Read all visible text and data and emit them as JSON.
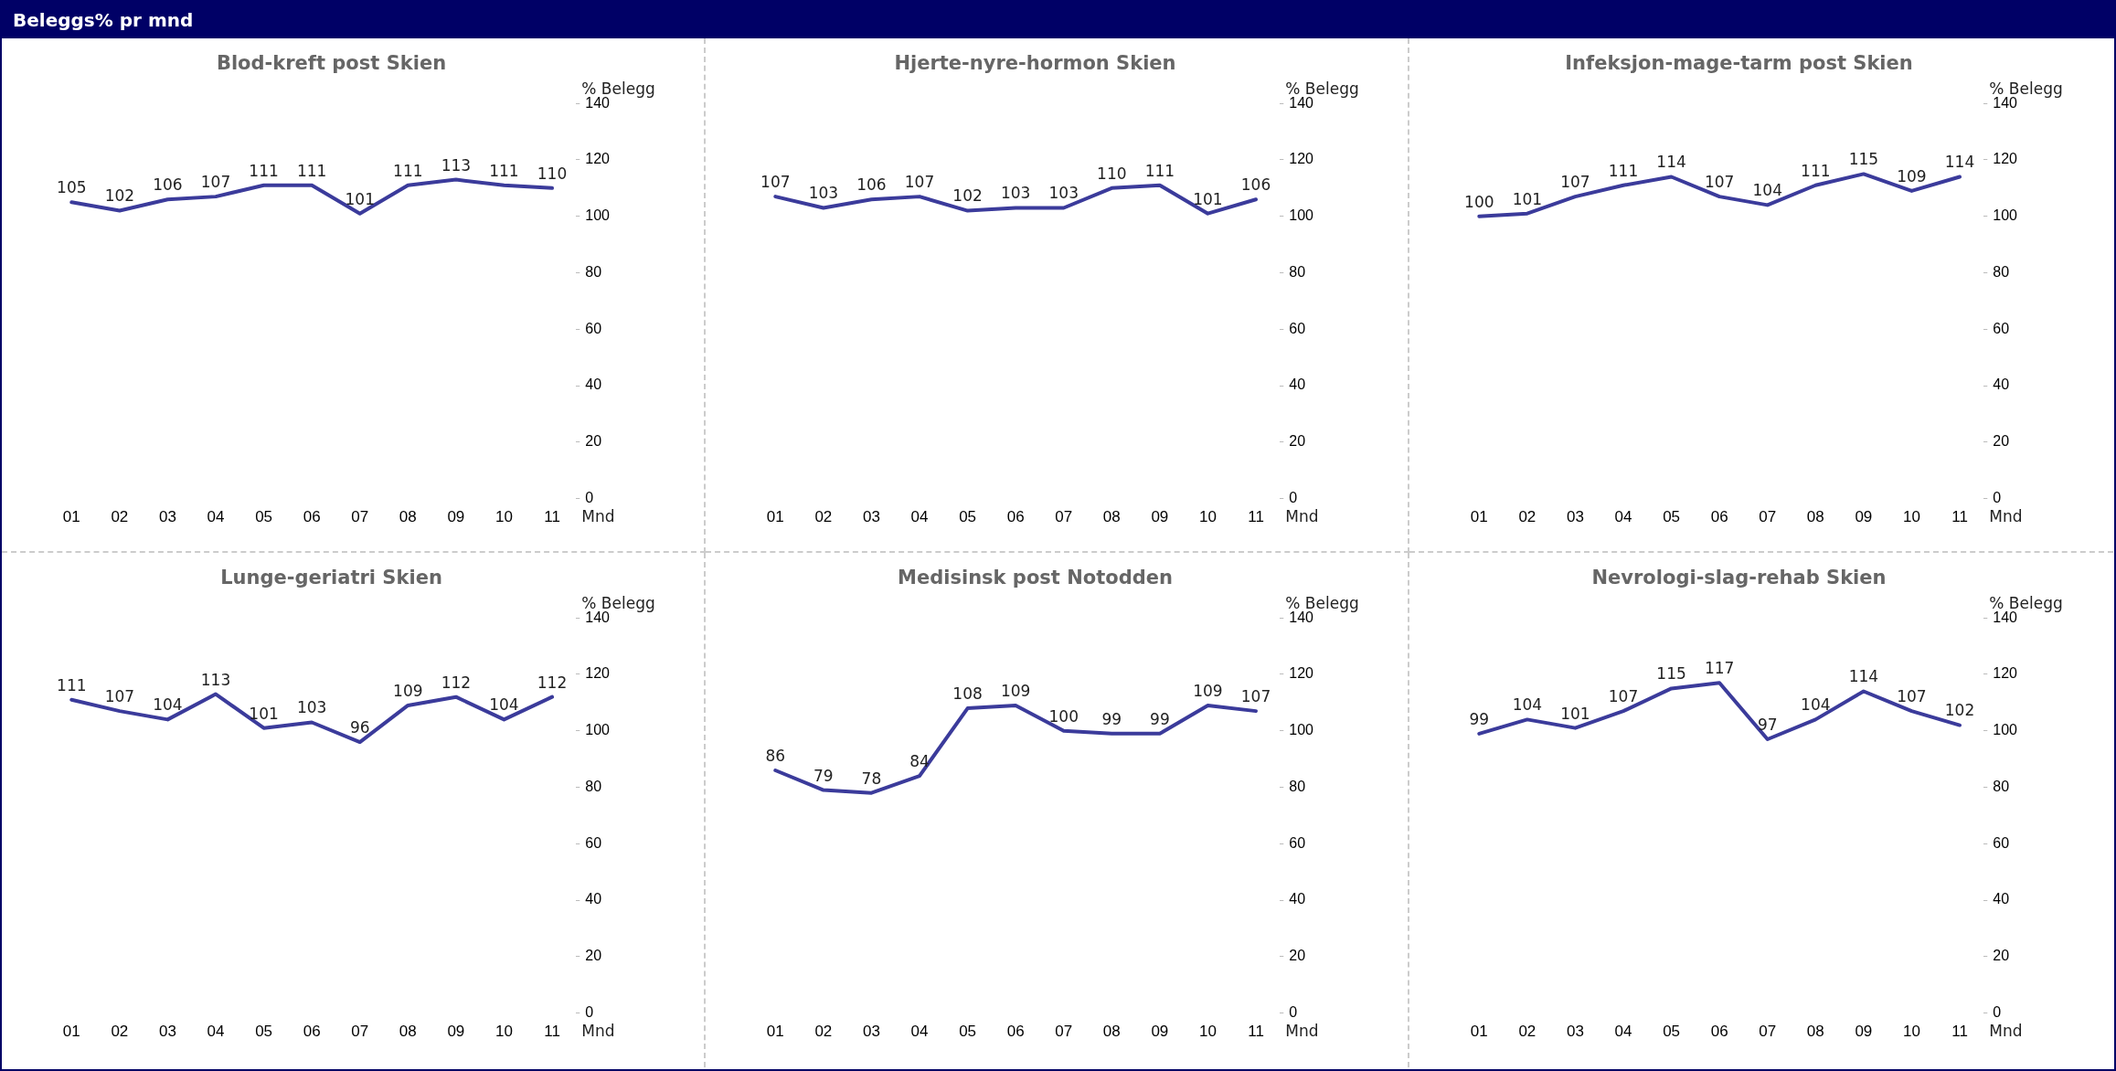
{
  "chart_data": [
    {
      "type": "other",
      "title": "Beleggs% pr mnd"
    },
    {
      "type": "line",
      "title": "Blod-kreft post Skien",
      "ylabel": "% Belegg",
      "xlabel": "Mnd",
      "categories": [
        "01",
        "02",
        "03",
        "04",
        "05",
        "06",
        "07",
        "08",
        "09",
        "10",
        "11"
      ],
      "series": [
        {
          "color": "#3b3b9b",
          "values": [
            105,
            102,
            106,
            107,
            111,
            111,
            101,
            111,
            113,
            111,
            110
          ]
        }
      ],
      "ylim": [
        0,
        140
      ],
      "yticks": [
        0,
        20,
        40,
        60,
        80,
        100,
        120,
        140
      ],
      "data_labels": true,
      "marker": "none"
    },
    {
      "type": "line",
      "title": "Hjerte-nyre-hormon Skien",
      "ylabel": "% Belegg",
      "xlabel": "Mnd",
      "categories": [
        "01",
        "02",
        "03",
        "04",
        "05",
        "06",
        "07",
        "08",
        "09",
        "10",
        "11"
      ],
      "series": [
        {
          "color": "#3b3b9b",
          "values": [
            107,
            103,
            106,
            107,
            102,
            103,
            103,
            110,
            111,
            101,
            106
          ]
        }
      ],
      "ylim": [
        0,
        140
      ],
      "yticks": [
        0,
        20,
        40,
        60,
        80,
        100,
        120,
        140
      ],
      "data_labels": true,
      "marker": "none"
    },
    {
      "type": "line",
      "title": "Infeksjon-mage-tarm post Skien",
      "ylabel": "% Belegg",
      "xlabel": "Mnd",
      "categories": [
        "01",
        "02",
        "03",
        "04",
        "05",
        "06",
        "07",
        "08",
        "09",
        "10",
        "11"
      ],
      "series": [
        {
          "color": "#3b3b9b",
          "values": [
            100,
            101,
            107,
            111,
            114,
            107,
            104,
            111,
            115,
            109,
            114
          ]
        }
      ],
      "ylim": [
        0,
        140
      ],
      "yticks": [
        0,
        20,
        40,
        60,
        80,
        100,
        120,
        140
      ],
      "data_labels": true,
      "marker": "none"
    },
    {
      "type": "line",
      "title": "Lunge-geriatri Skien",
      "ylabel": "% Belegg",
      "xlabel": "Mnd",
      "categories": [
        "01",
        "02",
        "03",
        "04",
        "05",
        "06",
        "07",
        "08",
        "09",
        "10",
        "11"
      ],
      "series": [
        {
          "color": "#3b3b9b",
          "values": [
            111,
            107,
            104,
            113,
            101,
            103,
            96,
            109,
            112,
            104,
            112
          ]
        }
      ],
      "ylim": [
        0,
        140
      ],
      "yticks": [
        0,
        20,
        40,
        60,
        80,
        100,
        120,
        140
      ],
      "data_labels": true,
      "marker": "none"
    },
    {
      "type": "line",
      "title": "Medisinsk post Notodden",
      "ylabel": "% Belegg",
      "xlabel": "Mnd",
      "categories": [
        "01",
        "02",
        "03",
        "04",
        "05",
        "06",
        "07",
        "08",
        "09",
        "10",
        "11"
      ],
      "series": [
        {
          "color": "#3b3b9b",
          "values": [
            86,
            79,
            78,
            84,
            108,
            109,
            100,
            99,
            99,
            109,
            107
          ]
        }
      ],
      "ylim": [
        0,
        140
      ],
      "yticks": [
        0,
        20,
        40,
        60,
        80,
        100,
        120,
        140
      ],
      "data_labels": true,
      "marker": "none"
    },
    {
      "type": "line",
      "title": "Nevrologi-slag-rehab Skien",
      "ylabel": "% Belegg",
      "xlabel": "Mnd",
      "categories": [
        "01",
        "02",
        "03",
        "04",
        "05",
        "06",
        "07",
        "08",
        "09",
        "10",
        "11"
      ],
      "series": [
        {
          "color": "#3b3b9b",
          "values": [
            99,
            104,
            101,
            107,
            115,
            117,
            97,
            104,
            114,
            107,
            102
          ]
        }
      ],
      "ylim": [
        0,
        140
      ],
      "yticks": [
        0,
        20,
        40,
        60,
        80,
        100,
        120,
        140
      ],
      "data_labels": true,
      "marker": "none"
    }
  ]
}
